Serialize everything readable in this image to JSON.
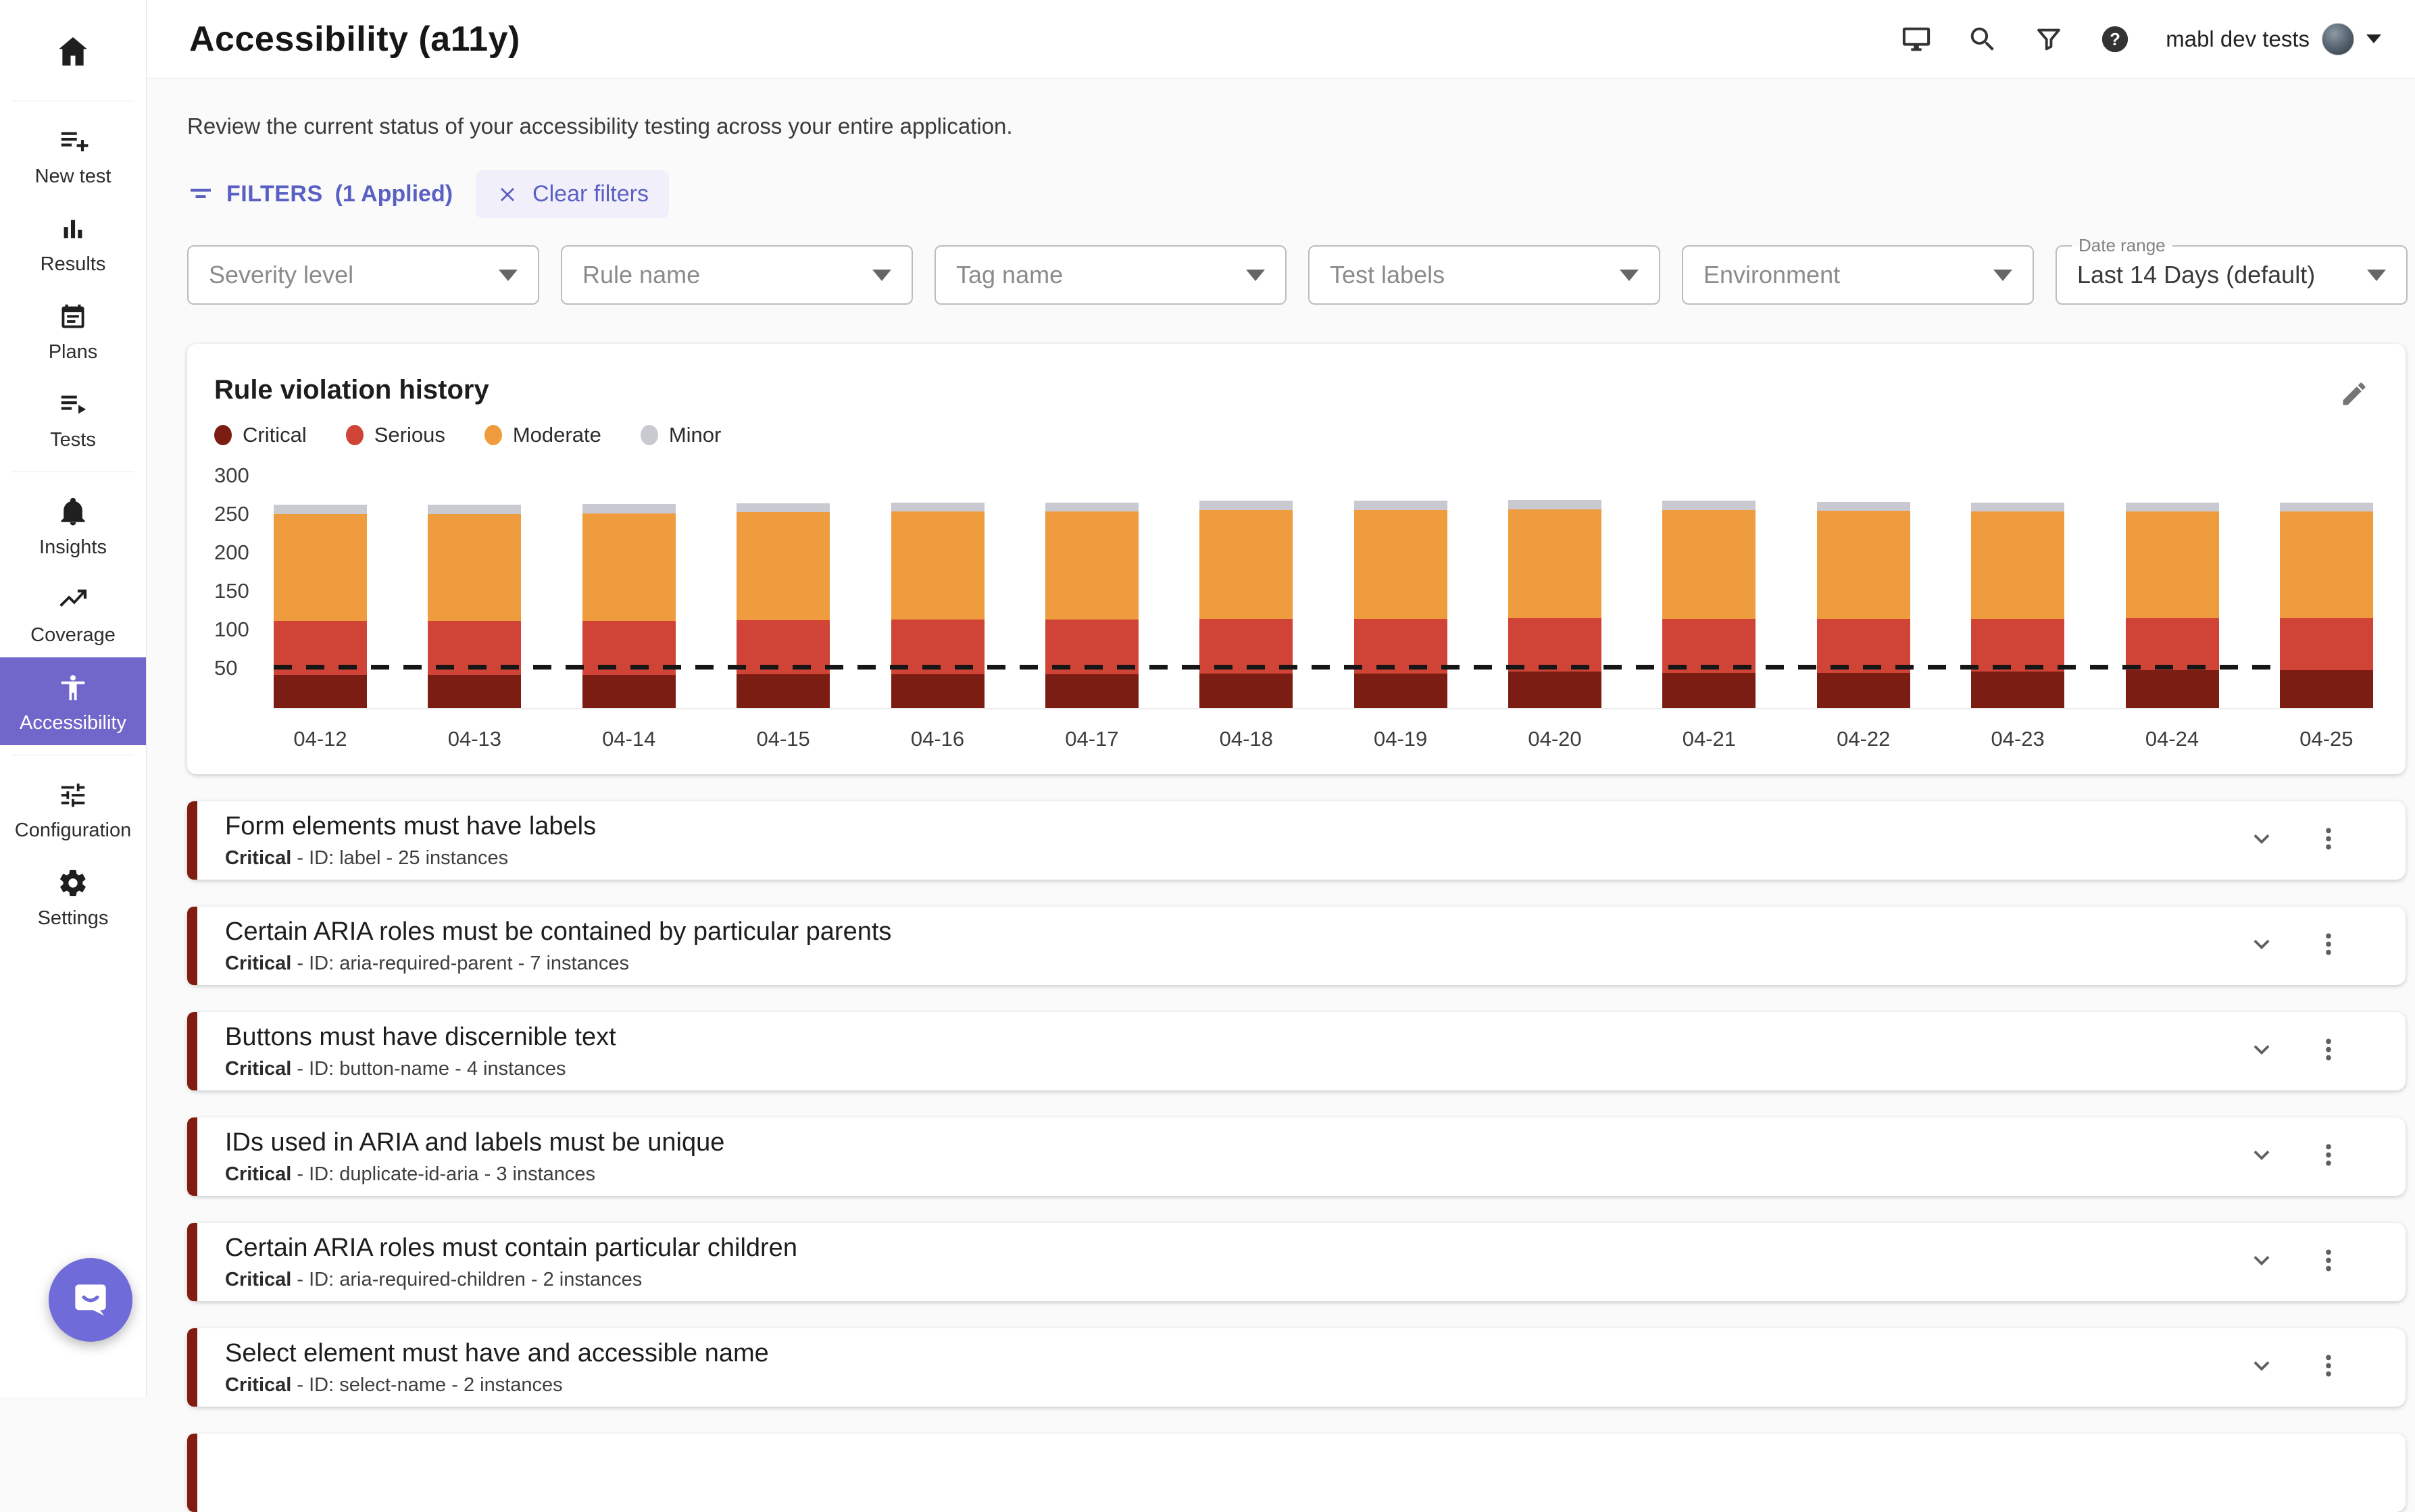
{
  "header": {
    "title": "Accessibility (a11y)",
    "account_name": "mabl dev tests",
    "icons": [
      "monitor-icon",
      "search-icon",
      "funnel-icon",
      "help-icon"
    ]
  },
  "sidebar": {
    "items": [
      {
        "id": "new-test",
        "label": "New test",
        "icon": "playlist-add-icon"
      },
      {
        "id": "results",
        "label": "Results",
        "icon": "bar-chart-icon"
      },
      {
        "id": "plans",
        "label": "Plans",
        "icon": "calendar-icon"
      },
      {
        "id": "tests",
        "label": "Tests",
        "icon": "playlist-play-icon"
      },
      {
        "type": "divider"
      },
      {
        "id": "insights",
        "label": "Insights",
        "icon": "bell-icon"
      },
      {
        "id": "coverage",
        "label": "Coverage",
        "icon": "trending-up-icon"
      },
      {
        "id": "accessibility",
        "label": "Accessibility",
        "icon": "accessibility-icon",
        "selected": true
      },
      {
        "type": "divider"
      },
      {
        "id": "configuration",
        "label": "Configuration",
        "icon": "tune-icon"
      },
      {
        "id": "settings",
        "label": "Settings",
        "icon": "gear-icon"
      }
    ]
  },
  "intro": "Review the current status of your accessibility testing across your entire application.",
  "filters": {
    "label": "FILTERS",
    "applied": "(1 Applied)",
    "clear_label": "Clear filters",
    "selects": [
      "Severity level",
      "Rule name",
      "Tag name",
      "Test labels",
      "Environment"
    ],
    "date_range": {
      "label": "Date range",
      "value": "Last 14 Days (default)"
    }
  },
  "chart_data": {
    "type": "bar",
    "stacked": true,
    "title": "Rule violation history",
    "categories": [
      "04-12",
      "04-13",
      "04-14",
      "04-15",
      "04-16",
      "04-17",
      "04-18",
      "04-19",
      "04-20",
      "04-21",
      "04-22",
      "04-23",
      "04-24",
      "04-25"
    ],
    "series": [
      {
        "name": "Critical",
        "color": "#7b1d12",
        "values": [
          43,
          43,
          43,
          44,
          44,
          44,
          45,
          45,
          47,
          46,
          46,
          47,
          49,
          49
        ]
      },
      {
        "name": "Serious",
        "color": "#cf4436",
        "values": [
          70,
          70,
          70,
          70,
          71,
          71,
          71,
          71,
          70,
          70,
          70,
          69,
          68,
          68
        ]
      },
      {
        "name": "Moderate",
        "color": "#ef9c3e",
        "values": [
          139,
          139,
          140,
          140,
          140,
          140,
          141,
          141,
          141,
          141,
          140,
          139,
          138,
          138
        ]
      },
      {
        "name": "Minor",
        "color": "#c9c9d2",
        "values": [
          12,
          12,
          12,
          12,
          12,
          12,
          12,
          12,
          12,
          12,
          12,
          12,
          12,
          12
        ]
      }
    ],
    "ylabel": "",
    "xlabel": "",
    "ylim": [
      0,
      300
    ],
    "yticks": [
      50,
      100,
      150,
      200,
      250,
      300
    ],
    "threshold": 50,
    "legend_position": "top",
    "grid": false
  },
  "violations": [
    {
      "title": "Form elements must have labels",
      "severity": "Critical",
      "rule_id": "label",
      "instances": 25
    },
    {
      "title": "Certain ARIA roles must be contained by particular parents",
      "severity": "Critical",
      "rule_id": "aria-required-parent",
      "instances": 7
    },
    {
      "title": "Buttons must have discernible text",
      "severity": "Critical",
      "rule_id": "button-name",
      "instances": 4
    },
    {
      "title": "IDs used in ARIA and labels must be unique",
      "severity": "Critical",
      "rule_id": "duplicate-id-aria",
      "instances": 3
    },
    {
      "title": "Certain ARIA roles must contain particular children",
      "severity": "Critical",
      "rule_id": "aria-required-children",
      "instances": 2
    },
    {
      "title": "Select element must have and accessible name",
      "severity": "Critical",
      "rule_id": "select-name",
      "instances": 2
    },
    {
      "partial": true
    }
  ],
  "colors": {
    "accent_purple": "#7166c9",
    "filters_purple": "#5a5fc4",
    "chat_purple": "#6f6bd9",
    "critical": "#7b1d12",
    "serious": "#cf4436",
    "moderate": "#ef9c3e",
    "minor": "#c9c9d2"
  }
}
